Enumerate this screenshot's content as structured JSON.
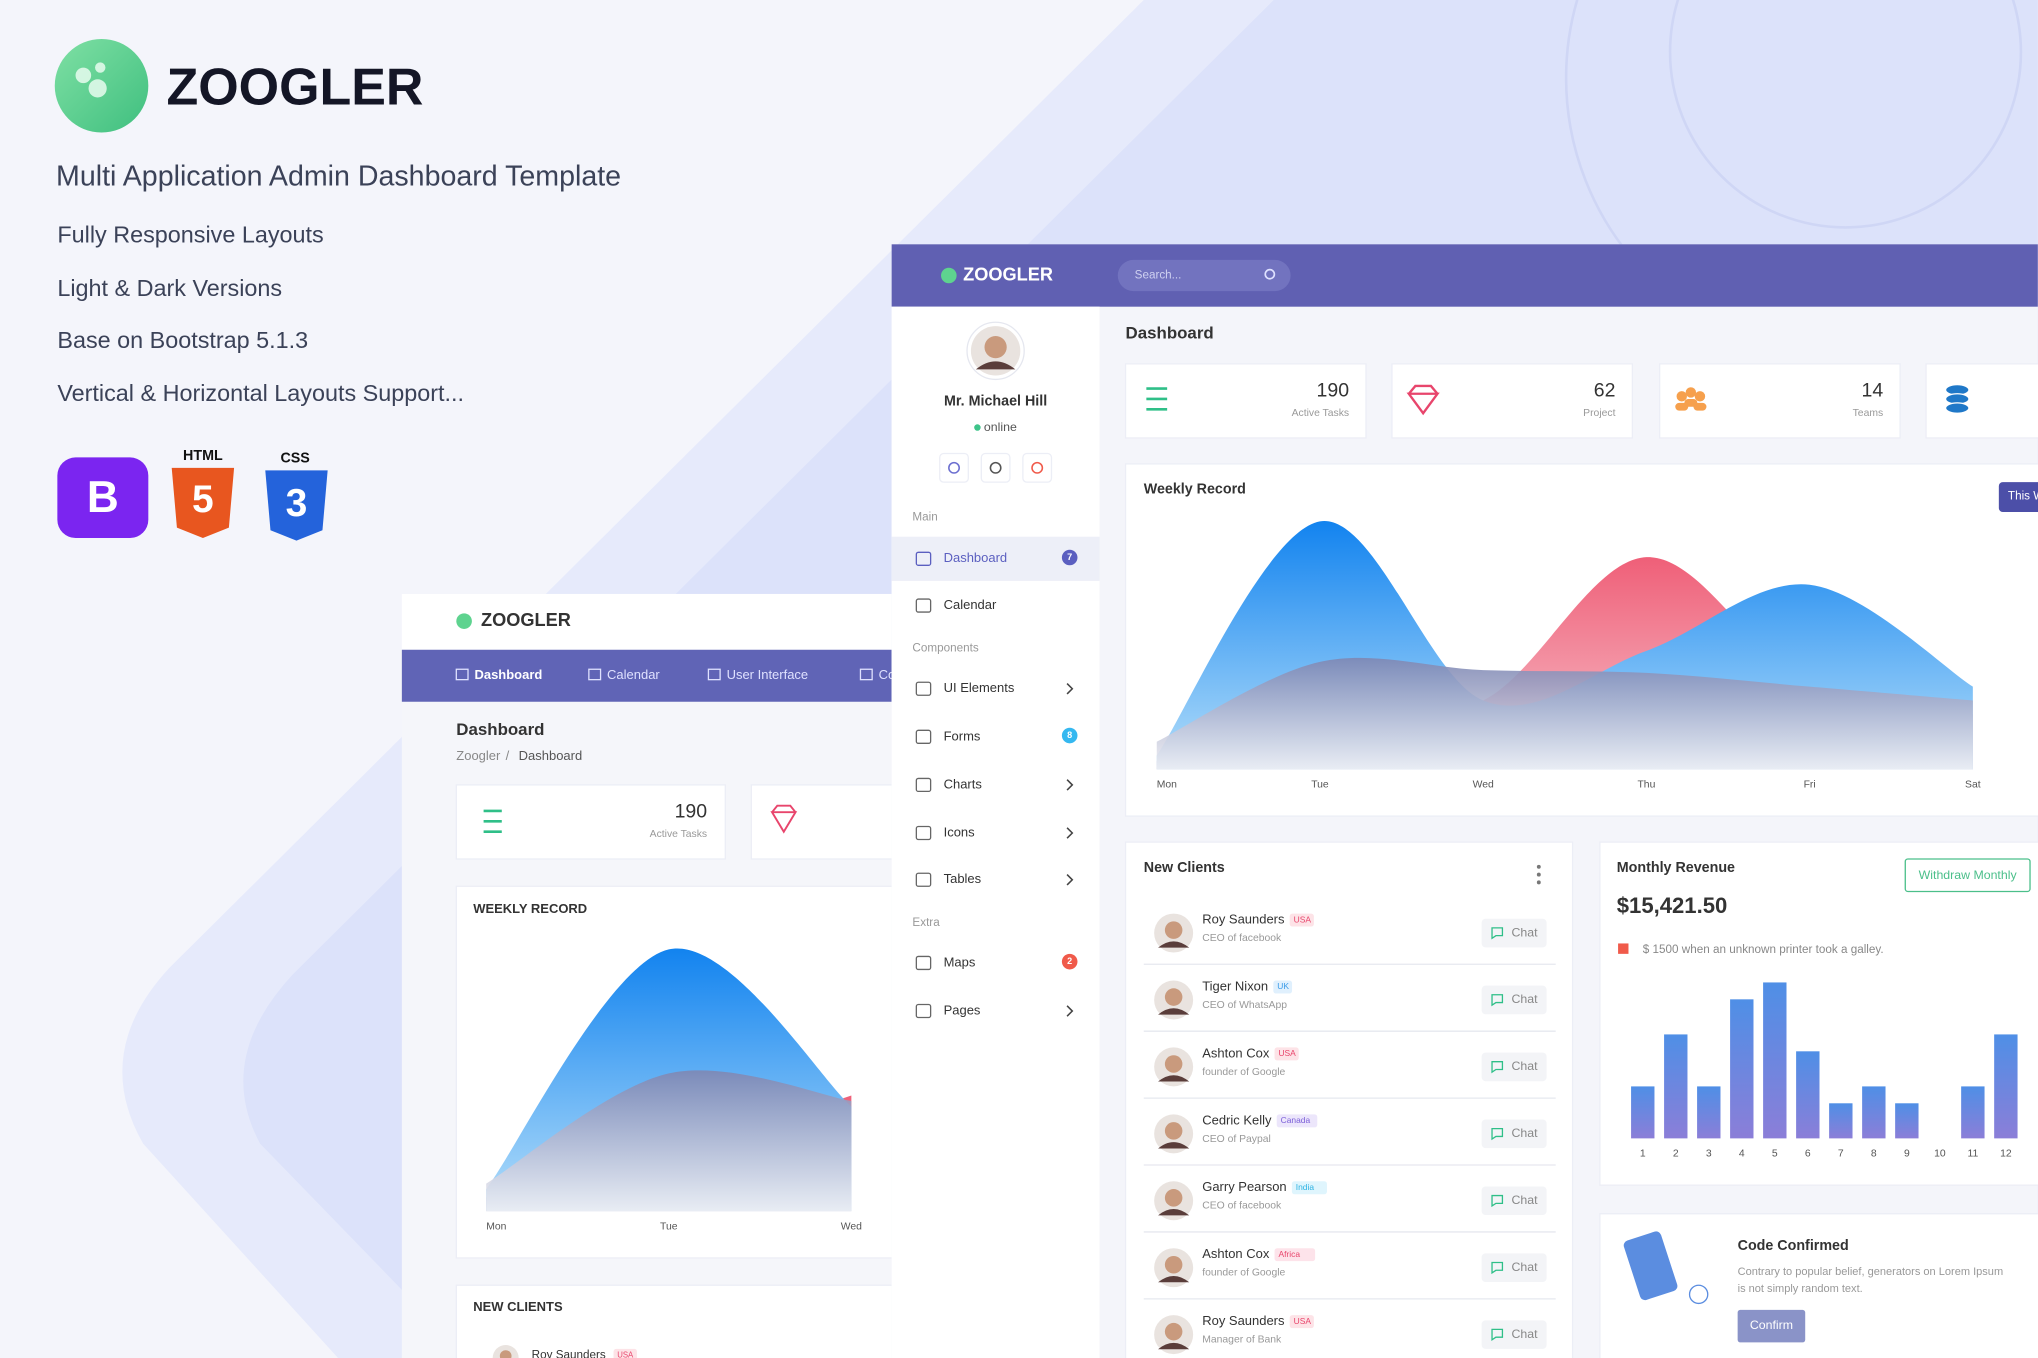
{
  "brand": {
    "name": "ZOOGLER",
    "tagline": "Multi Application Admin Dashboard Template",
    "features": [
      "Fully Responsive Layouts",
      "Light & Dark Versions",
      "Base on Bootstrap 5.1.3",
      "Vertical & Horizontal Layouts Support..."
    ],
    "badges": {
      "bootstrap": "B",
      "html": "HTML",
      "html_version": "5",
      "css": "CSS",
      "css_version": "3"
    }
  },
  "horizontal": {
    "brand": "ZOOGLER",
    "nav": [
      "Dashboard",
      "Calendar",
      "User Interface",
      "Co"
    ],
    "page_title": "Dashboard",
    "breadcrumb": [
      "Zoogler",
      "/",
      "Dashboard"
    ],
    "stat": {
      "value": "190",
      "label": "Active Tasks"
    },
    "weekly_record": {
      "type": "area",
      "title": "WEEKLY RECORD",
      "categories": [
        "Mon",
        "Tue",
        "Wed"
      ],
      "ylim": [
        0,
        100
      ],
      "series": [
        {
          "color": "#f26a80",
          "values": [
            5,
            20,
            42
          ]
        },
        {
          "color": "#1a86ef",
          "values": [
            8,
            95,
            38
          ]
        },
        {
          "color": "#8c93b8",
          "values": [
            10,
            50,
            40
          ]
        }
      ]
    },
    "new_clients": {
      "title": "NEW CLIENTS",
      "first": {
        "name": "Roy Saunders",
        "country": "USA"
      }
    }
  },
  "vertical": {
    "brand": "ZOOGLER",
    "search": "Search...",
    "user": {
      "name": "Mr. Michael Hill",
      "status": "online"
    },
    "sidebar": [
      {
        "section": "Main",
        "items": [
          {
            "label": "Dashboard",
            "badge": "7"
          },
          {
            "label": "Calendar"
          }
        ]
      },
      {
        "section": "Components",
        "items": [
          {
            "label": "UI Elements"
          },
          {
            "label": "Forms",
            "badge": "8"
          },
          {
            "label": "Charts"
          },
          {
            "label": "Icons"
          },
          {
            "label": "Tables"
          }
        ]
      },
      {
        "section": "Extra",
        "items": [
          {
            "label": "Maps",
            "badge": "2"
          },
          {
            "label": "Pages"
          }
        ]
      }
    ],
    "page_title": "Dashboard",
    "stats": [
      {
        "value": "190",
        "label": "Active Tasks"
      },
      {
        "value": "62",
        "label": "Project"
      },
      {
        "value": "14",
        "label": "Teams"
      }
    ],
    "weekly_record": {
      "type": "area",
      "title": "Weekly Record",
      "button": "This W",
      "categories": [
        "Mon",
        "Tue",
        "Wed",
        "Thu",
        "Fri",
        "Sat"
      ],
      "ylim": [
        0,
        100
      ],
      "series": [
        {
          "color": "#f26a80",
          "values": [
            3,
            20,
            25,
            77,
            30,
            20
          ]
        },
        {
          "color": "#1a86ef",
          "values": [
            5,
            90,
            25,
            43,
            67,
            30
          ]
        },
        {
          "color": "#8c93b8",
          "values": [
            10,
            39,
            36,
            35,
            30,
            25
          ]
        }
      ]
    },
    "new_clients": {
      "title": "New Clients",
      "action": "Chat",
      "clients": [
        {
          "name": "Roy Saunders",
          "country": "USA",
          "role": "CEO of facebook"
        },
        {
          "name": "Tiger Nixon",
          "country": "UK",
          "role": "CEO of WhatsApp"
        },
        {
          "name": "Ashton Cox",
          "country": "USA",
          "role": "founder of Google"
        },
        {
          "name": "Cedric Kelly",
          "country": "Canada",
          "role": "CEO of Paypal"
        },
        {
          "name": "Garry Pearson",
          "country": "India",
          "role": "CEO of facebook"
        },
        {
          "name": "Ashton Cox",
          "country": "Africa",
          "role": "founder of Google"
        },
        {
          "name": "Roy Saunders",
          "country": "USA",
          "role": "Manager of Bank"
        }
      ]
    },
    "monthly_revenue": {
      "type": "bar",
      "title": "Monthly Revenue",
      "button": "Withdraw Monthly",
      "amount": "$15,421.50",
      "note": "$ 1500 when an unknown printer took a galley.",
      "categories": [
        "1",
        "2",
        "3",
        "4",
        "5",
        "6",
        "7",
        "8",
        "9",
        "10",
        "11",
        "12"
      ],
      "values": [
        40,
        80,
        40,
        107,
        120,
        67,
        27,
        40,
        27,
        0,
        40,
        80
      ],
      "ylim": [
        0,
        130
      ]
    },
    "code_confirmed": {
      "title": "Code Confirmed",
      "text": [
        "Contrary to popular belief, generators on Lorem Ipsum",
        "is not simply random text."
      ],
      "button": "Confirm"
    }
  }
}
